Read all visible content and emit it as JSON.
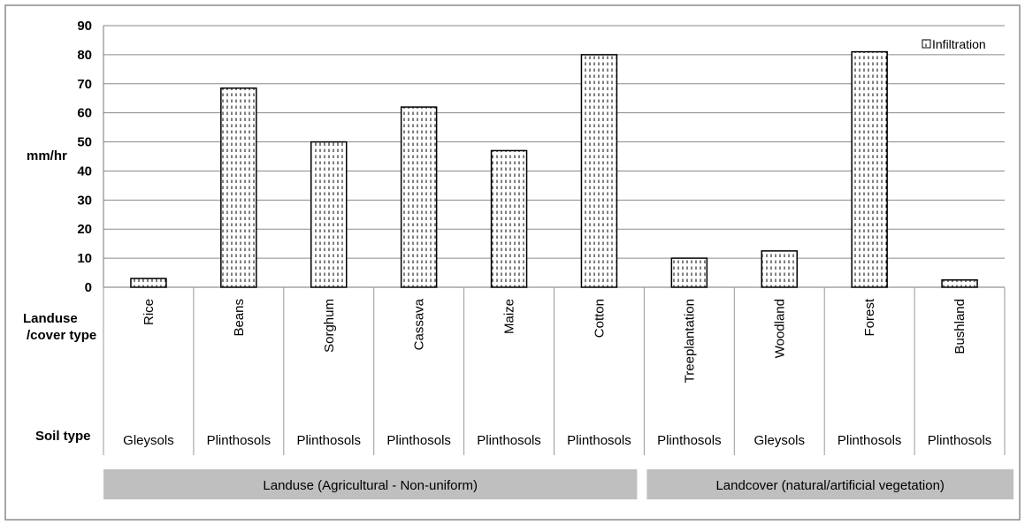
{
  "chart_data": {
    "type": "bar",
    "title": "",
    "ylabel": "mm/hr",
    "xlabel": "",
    "ylim": [
      0,
      90
    ],
    "yticks": [
      0,
      10,
      20,
      30,
      40,
      50,
      60,
      70,
      80,
      90
    ],
    "grid": true,
    "legend_position": "top-right",
    "row_headers": {
      "category": "Landuse /cover type",
      "soil": "Soil type"
    },
    "categories": [
      "Rice",
      "Beans",
      "Sorghum",
      "Cassava",
      "Maize",
      "Cotton",
      "Treeplantation",
      "Woodland",
      "Forest",
      "Bushland"
    ],
    "soil_types": [
      "Gleysols",
      "Plinthosols",
      "Plinthosols",
      "Plinthosols",
      "Plinthosols",
      "Plinthosols",
      "Plinthosols",
      "Gleysols",
      "Plinthosols",
      "Plinthosols"
    ],
    "series": [
      {
        "name": "Infiltration",
        "values": [
          3,
          68.5,
          50,
          62,
          47,
          80,
          10,
          12.5,
          81,
          2.5
        ]
      }
    ],
    "groups": [
      {
        "label": "Landuse  (Agricultural  - Non-uniform)",
        "start": 0,
        "end": 5
      },
      {
        "label": "Landcover  (natural/artificial  vegetation)",
        "start": 6,
        "end": 9
      }
    ],
    "colors": {
      "bar_fill": "#ffffff",
      "bar_stroke": "#000000",
      "grid": "#8a8a8a",
      "group_band": "#bfbfbf"
    }
  }
}
